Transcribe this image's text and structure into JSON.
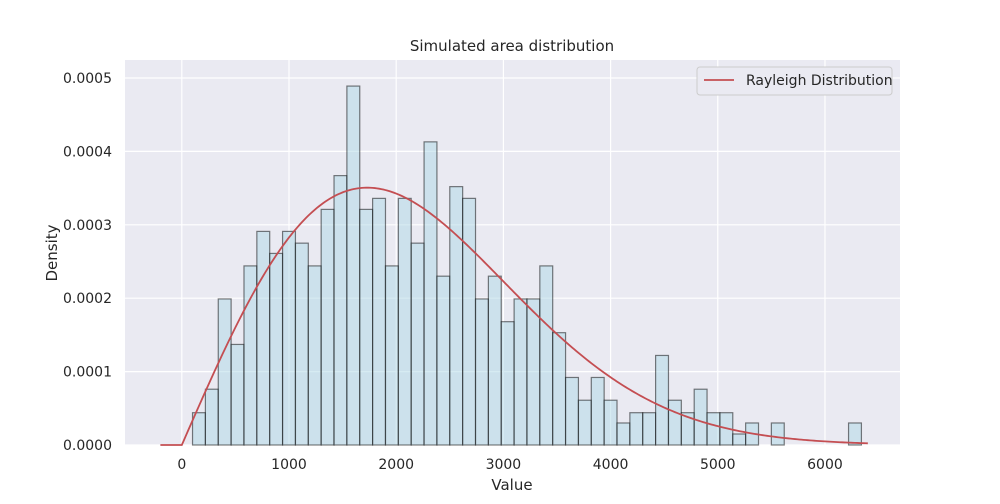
{
  "chart_data": {
    "type": "bar",
    "title": "Simulated area distribution",
    "xlabel": "Value",
    "ylabel": "Density",
    "xlim": [
      -530,
      6700
    ],
    "ylim": [
      0,
      0.0005
    ],
    "x_ticks": [
      0,
      1000,
      2000,
      3000,
      4000,
      5000,
      6000
    ],
    "x_tick_labels": [
      "0",
      "1000",
      "2000",
      "3000",
      "4000",
      "5000",
      "6000"
    ],
    "y_ticks": [
      0,
      0.0001,
      0.0002,
      0.0003,
      0.0004,
      0.0005
    ],
    "y_tick_labels": [
      "0.0000",
      "0.0001",
      "0.0002",
      "0.0003",
      "0.0004",
      "0.0005"
    ],
    "grid": true,
    "legend_position": "top-right",
    "histogram": {
      "bin_start": 100,
      "bin_width": 120,
      "densities": [
        4.4e-05,
        7.6e-05,
        0.000199,
        0.000137,
        0.000244,
        0.000291,
        0.000261,
        0.000291,
        0.000275,
        0.000244,
        0.000321,
        0.000367,
        0.000489,
        0.000321,
        0.000336,
        0.000244,
        0.000336,
        0.000275,
        0.000413,
        0.00023,
        0.000352,
        0.000336,
        0.000199,
        0.00023,
        0.000168,
        0.000199,
        0.000199,
        0.000244,
        0.000153,
        9.2e-05,
        6.1e-05,
        9.2e-05,
        6.1e-05,
        3e-05,
        4.4e-05,
        4.4e-05,
        0.000122,
        6.1e-05,
        4.4e-05,
        7.6e-05,
        4.4e-05,
        4.4e-05,
        1.5e-05,
        3e-05,
        0.0,
        3e-05,
        0.0,
        0.0,
        0.0,
        0.0,
        0.0,
        3e-05
      ],
      "fill_color": "#add8e6",
      "edge_color": "#000000"
    },
    "series": [
      {
        "name": "Rayleigh Distribution",
        "type": "line",
        "color": "#c44e52",
        "sigma": 1730,
        "x_range": [
          -200,
          6400
        ]
      }
    ],
    "plot_background": "#eaeaf2",
    "grid_color": "#ffffff"
  }
}
